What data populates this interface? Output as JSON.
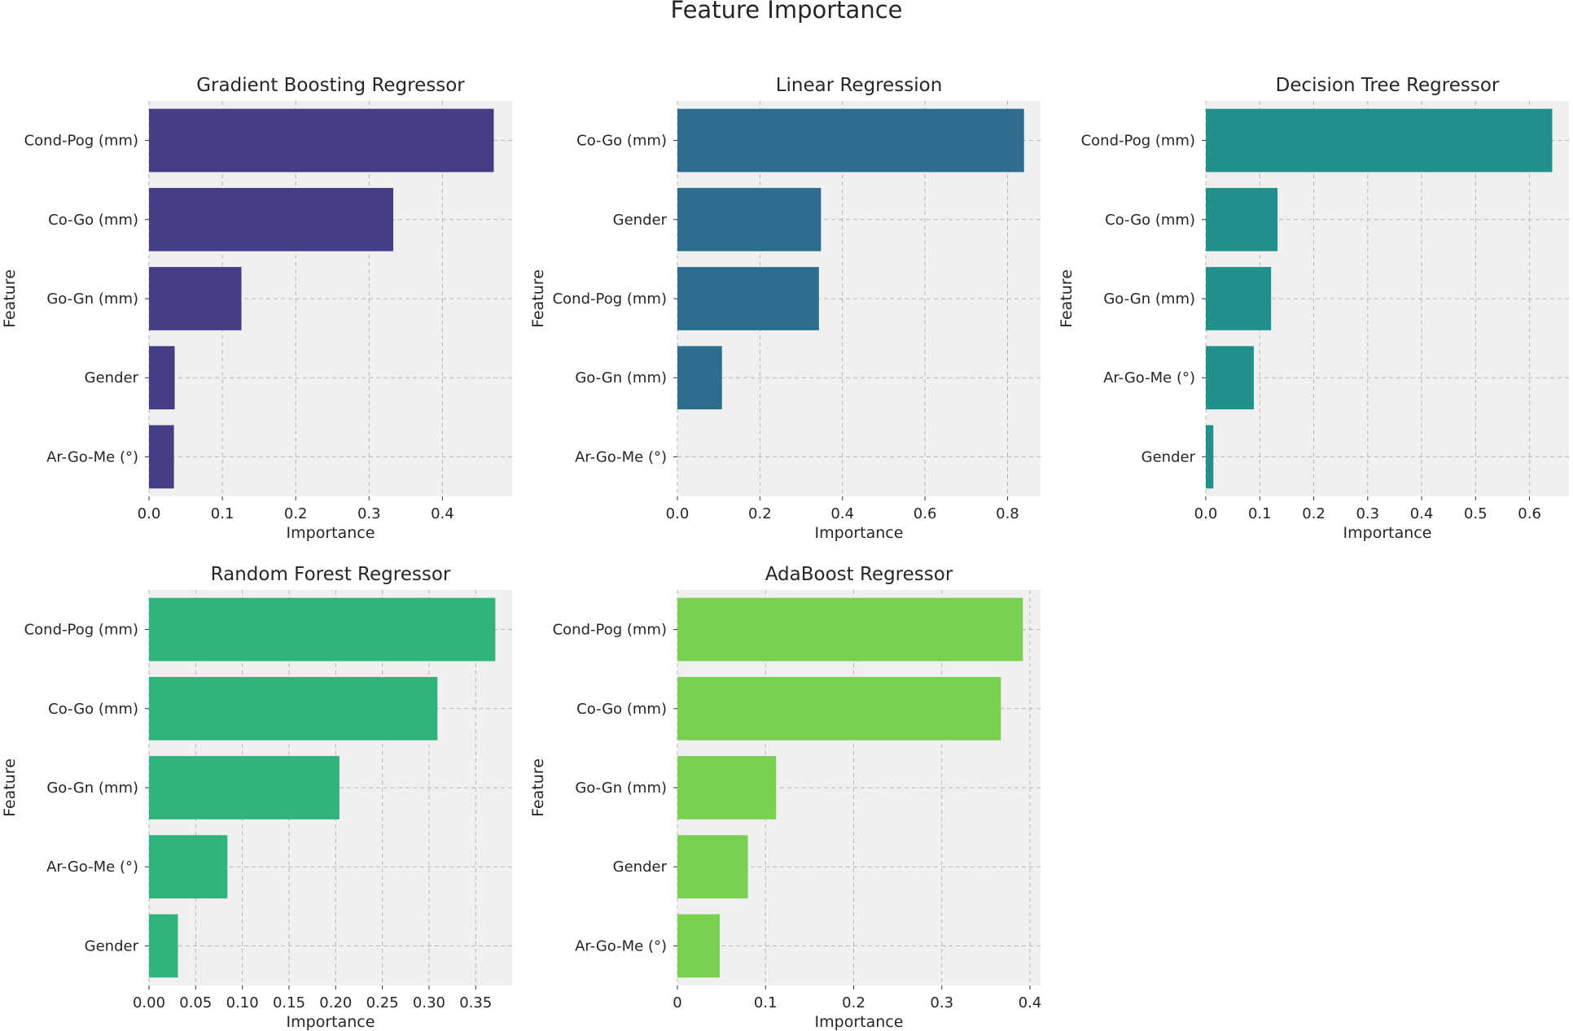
{
  "figure_title": "Feature Importance",
  "chart_data": [
    {
      "type": "bar",
      "orientation": "horizontal",
      "title": "Gradient Boosting Regressor",
      "xlabel": "Importance",
      "ylabel": "Feature",
      "color": "#433e85",
      "categories": [
        "Cond-Pog (mm)",
        "Co-Go (mm)",
        "Go-Gn (mm)",
        "Gender",
        "Ar-Go-Me (°)"
      ],
      "values": [
        0.47,
        0.333,
        0.126,
        0.035,
        0.034
      ],
      "xlim": [
        0,
        0.495
      ],
      "xticks": [
        0,
        0.1,
        0.2,
        0.3,
        0.4
      ],
      "xtick_labels": [
        "0.0",
        "0.1",
        "0.2",
        "0.3",
        "0.4"
      ],
      "grid": true
    },
    {
      "type": "bar",
      "orientation": "horizontal",
      "title": "Linear Regression",
      "xlabel": "Importance",
      "ylabel": "Feature",
      "color": "#2d6e8e",
      "categories": [
        "Co-Go (mm)",
        "Gender",
        "Cond-Pog (mm)",
        "Go-Gn (mm)",
        "Ar-Go-Me (°)"
      ],
      "values": [
        0.84,
        0.348,
        0.343,
        0.108,
        0.0
      ],
      "xlim": [
        0,
        0.88
      ],
      "xticks": [
        0,
        0.2,
        0.4,
        0.6,
        0.8
      ],
      "xtick_labels": [
        "0.0",
        "0.2",
        "0.4",
        "0.6",
        "0.8"
      ],
      "grid": true
    },
    {
      "type": "bar",
      "orientation": "horizontal",
      "title": "Decision Tree Regressor",
      "xlabel": "Importance",
      "ylabel": "Feature",
      "color": "#21918c",
      "categories": [
        "Cond-Pog (mm)",
        "Co-Go (mm)",
        "Go-Gn (mm)",
        "Ar-Go-Me (°)",
        "Gender"
      ],
      "values": [
        0.642,
        0.133,
        0.121,
        0.089,
        0.014
      ],
      "xlim": [
        0,
        0.673
      ],
      "xticks": [
        0,
        0.1,
        0.2,
        0.3,
        0.4,
        0.5,
        0.6
      ],
      "xtick_labels": [
        "0.0",
        "0.1",
        "0.2",
        "0.3",
        "0.4",
        "0.5",
        "0.6"
      ],
      "grid": true
    },
    {
      "type": "bar",
      "orientation": "horizontal",
      "title": "Random Forest Regressor",
      "xlabel": "Importance",
      "ylabel": "Feature",
      "color": "#2fb47c",
      "categories": [
        "Cond-Pog (mm)",
        "Co-Go (mm)",
        "Go-Gn (mm)",
        "Ar-Go-Me (°)",
        "Gender"
      ],
      "values": [
        0.371,
        0.309,
        0.204,
        0.084,
        0.031
      ],
      "xlim": [
        0,
        0.389
      ],
      "xticks": [
        0,
        0.05,
        0.1,
        0.15,
        0.2,
        0.25,
        0.3,
        0.35
      ],
      "xtick_labels": [
        "0.00",
        "0.05",
        "0.10",
        "0.15",
        "0.20",
        "0.25",
        "0.30",
        "0.35"
      ],
      "grid": true
    },
    {
      "type": "bar",
      "orientation": "horizontal",
      "title": "AdaBoost Regressor",
      "xlabel": "Importance",
      "ylabel": "Feature",
      "color": "#7ad151",
      "categories": [
        "Cond-Pog (mm)",
        "Co-Go (mm)",
        "Go-Gn (mm)",
        "Gender",
        "Ar-Go-Me (°)"
      ],
      "values": [
        0.392,
        0.367,
        0.112,
        0.08,
        0.048
      ],
      "xlim": [
        0,
        0.412
      ],
      "xticks": [
        0,
        0.1,
        0.2,
        0.3,
        0.4
      ],
      "xtick_labels": [
        "0",
        "0.1",
        "0.2",
        "0.3",
        "0.4"
      ],
      "grid": true
    }
  ]
}
